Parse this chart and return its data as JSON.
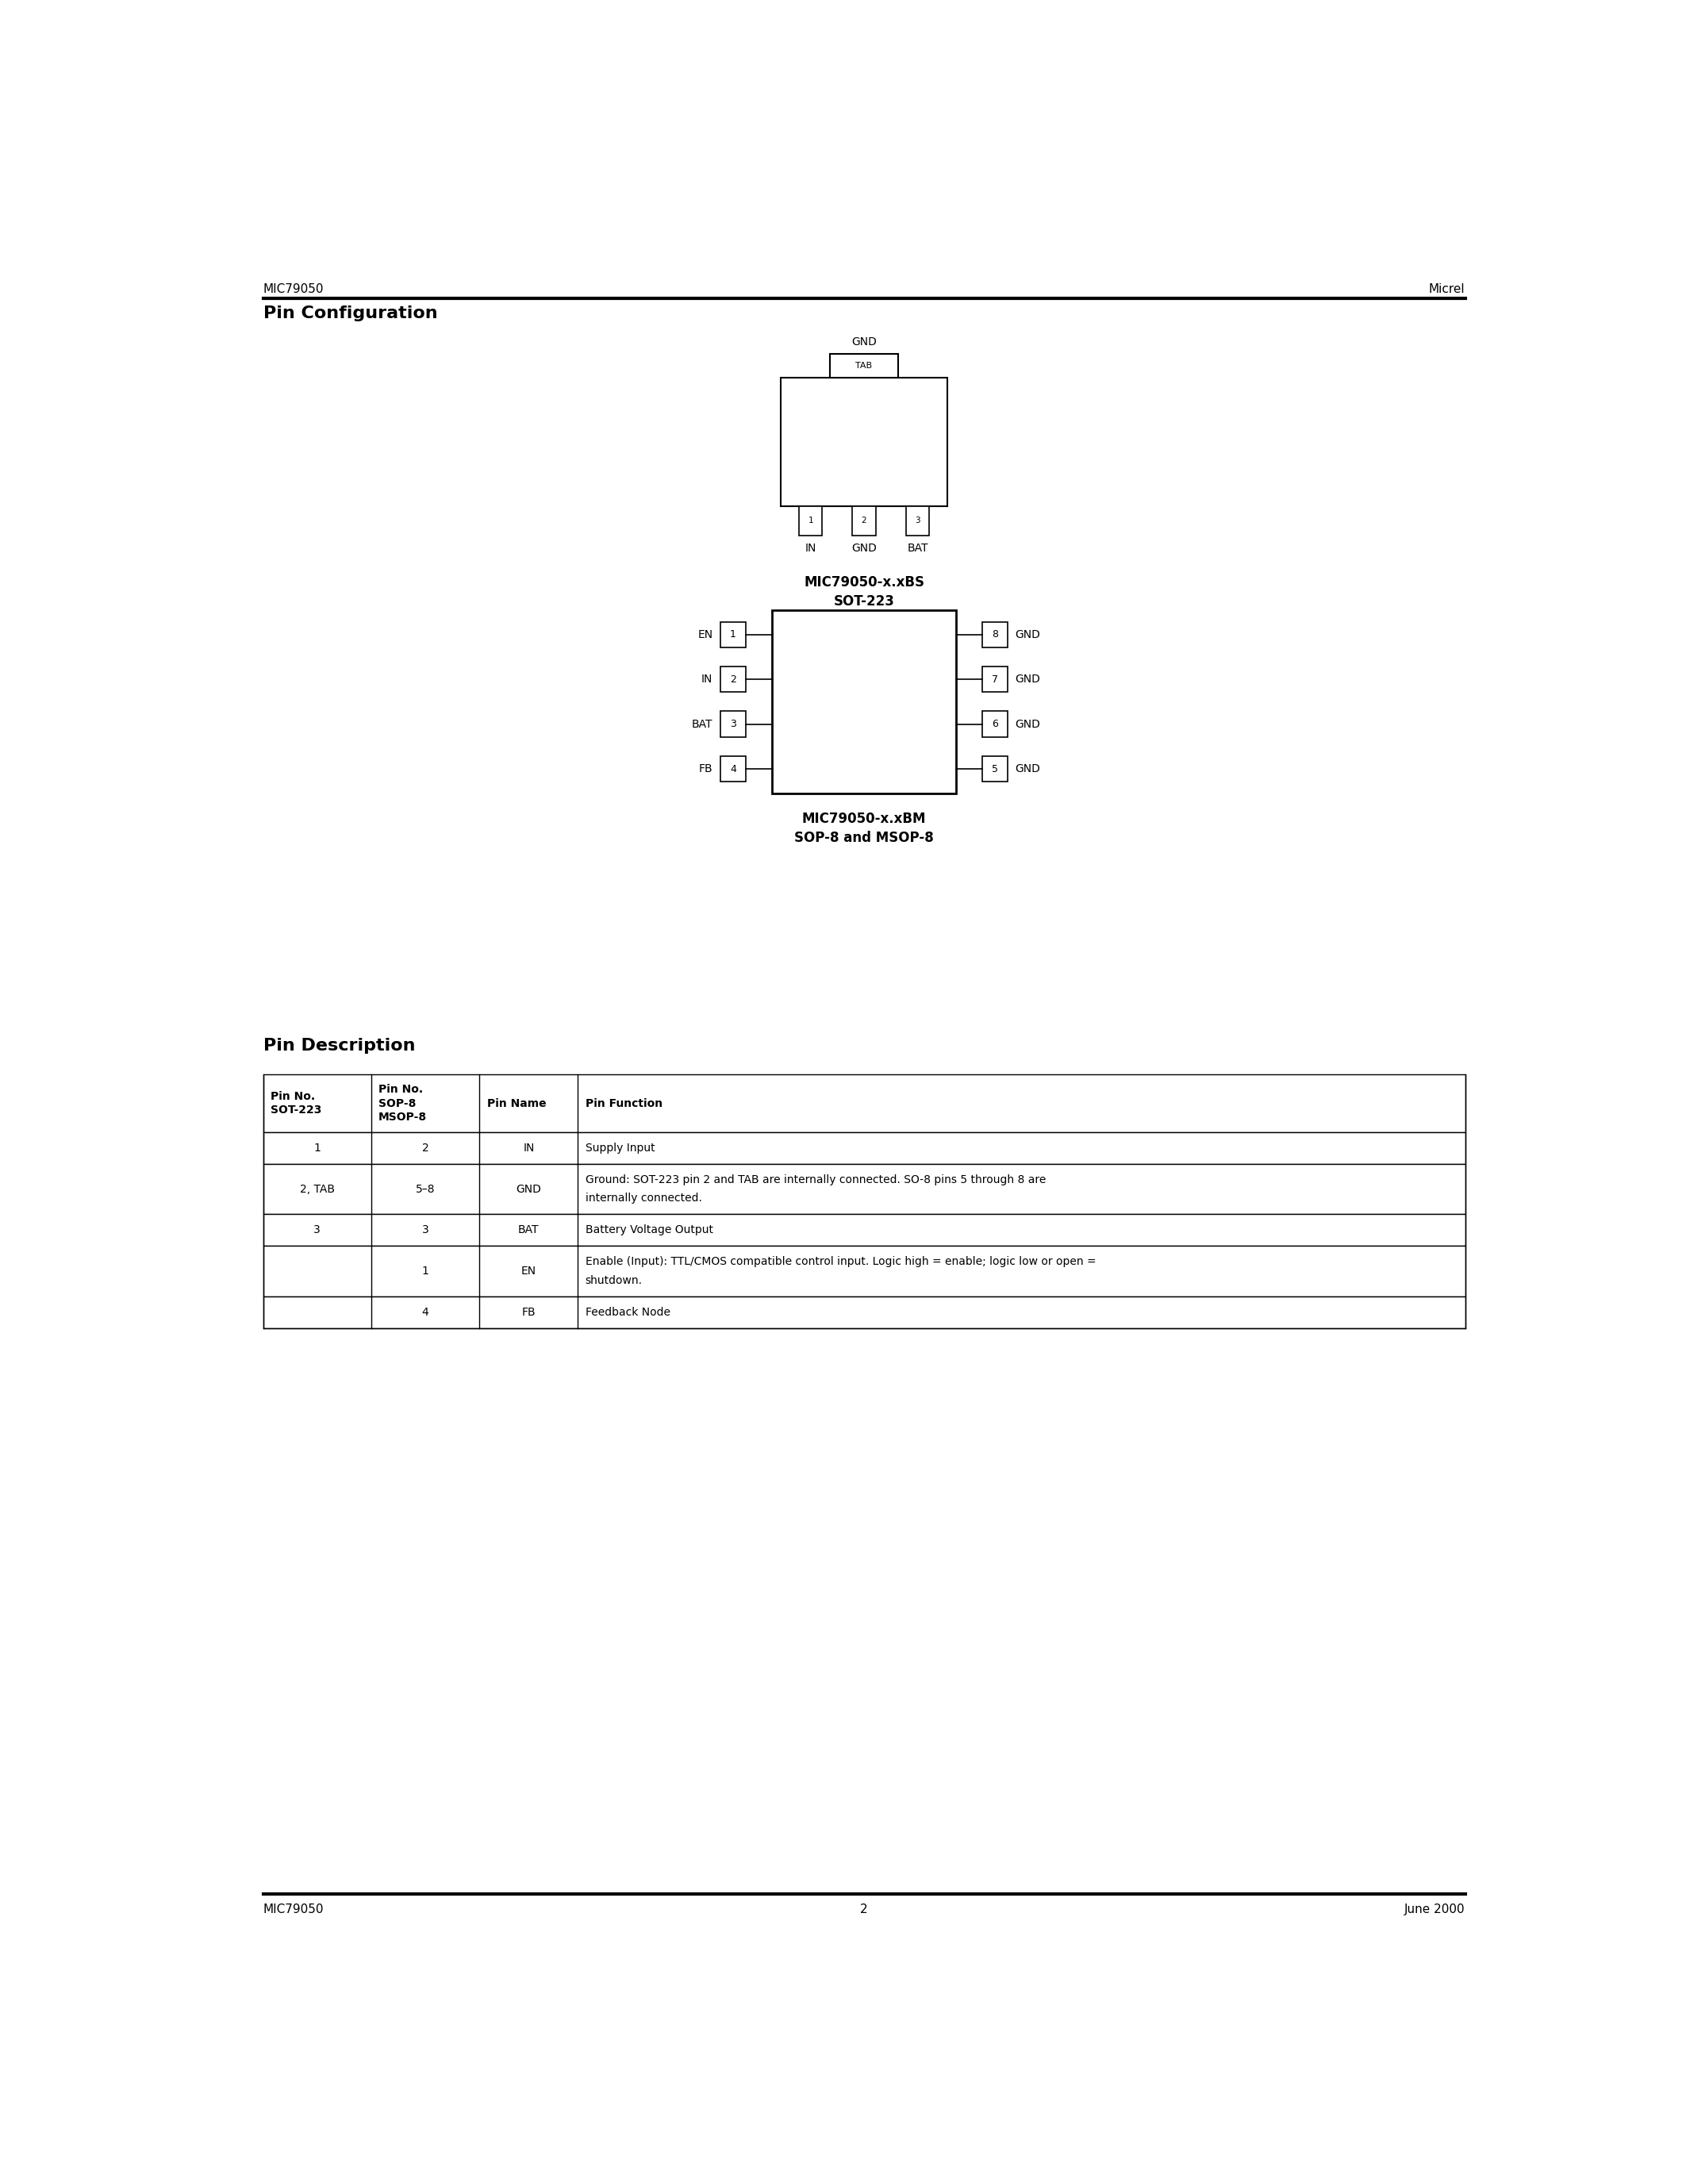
{
  "page_title_left": "MIC79050",
  "page_title_right": "Micrel",
  "page_section": "Pin Configuration",
  "footer_left": "MIC79050",
  "footer_center": "2",
  "footer_right": "June 2000",
  "sot223_label": "MIC79050-x.xBS\nSOT-223",
  "sop8_label": "MIC79050-x.xBM\nSOP-8 and MSOP-8",
  "pin_desc_title": "Pin Description",
  "table_headers": [
    "Pin No.\nSOT-223",
    "Pin No.\nSOP-8\nMSOP-8",
    "Pin Name",
    "Pin Function"
  ],
  "table_rows": [
    [
      "1",
      "2",
      "IN",
      "Supply Input"
    ],
    [
      "2, TAB",
      "5–8",
      "GND",
      "Ground: SOT-223 pin 2 and TAB are internally connected. SO-8 pins 5 through 8 are\ninternally connected."
    ],
    [
      "3",
      "3",
      "BAT",
      "Battery Voltage Output"
    ],
    [
      "",
      "1",
      "EN",
      "Enable (Input): TTL/CMOS compatible control input. Logic high = enable; logic low or open =\nshutdown."
    ],
    [
      "",
      "4",
      "FB",
      "Feedback Node"
    ]
  ],
  "background_color": "#ffffff",
  "text_color": "#000000",
  "line_color": "#000000"
}
